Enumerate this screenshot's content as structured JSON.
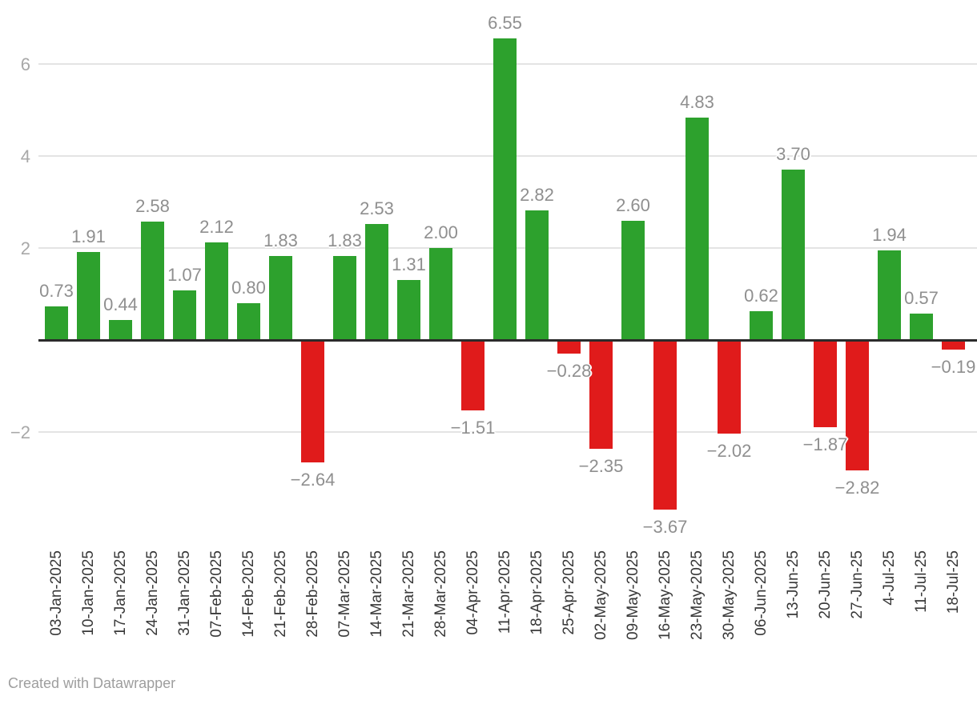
{
  "chart_data": {
    "type": "bar",
    "title": "",
    "xlabel": "",
    "ylabel": "",
    "grid": true,
    "legend": null,
    "categories": [
      "03-Jan-2025",
      "10-Jan-2025",
      "17-Jan-2025",
      "24-Jan-2025",
      "31-Jan-2025",
      "07-Feb-2025",
      "14-Feb-2025",
      "21-Feb-2025",
      "28-Feb-2025",
      "07-Mar-2025",
      "14-Mar-2025",
      "21-Mar-2025",
      "28-Mar-2025",
      "04-Apr-2025",
      "11-Apr-2025",
      "18-Apr-2025",
      "25-Apr-2025",
      "02-May-2025",
      "09-May-2025",
      "16-May-2025",
      "23-May-2025",
      "30-May-2025",
      "06-Jun-2025",
      "13-Jun-25",
      "20-Jun-25",
      "27-Jun-25",
      "4-Jul-25",
      "11-Jul-25",
      "18-Jul-25"
    ],
    "values": [
      0.73,
      1.91,
      0.44,
      2.58,
      1.07,
      2.12,
      0.8,
      1.83,
      -2.64,
      1.83,
      2.53,
      1.31,
      2.0,
      -1.51,
      6.55,
      2.82,
      -0.28,
      -2.35,
      2.6,
      -3.67,
      4.83,
      -2.02,
      0.62,
      3.7,
      -1.87,
      -2.82,
      1.94,
      0.57,
      -0.19
    ],
    "value_labels": [
      "0.73",
      "1.91",
      "0.44",
      "2.58",
      "1.07",
      "2.12",
      "0.80",
      "1.83",
      "−2.64",
      "1.83",
      "2.53",
      "1.31",
      "2.00",
      "−1.51",
      "6.55",
      "2.82",
      "−0.28",
      "−2.35",
      "2.60",
      "−3.67",
      "4.83",
      "−2.02",
      "0.62",
      "3.70",
      "−1.87",
      "−2.82",
      "1.94",
      "0.57",
      "−0.19"
    ],
    "yticks": [
      {
        "value": 6,
        "label": "6"
      },
      {
        "value": 4,
        "label": "4"
      },
      {
        "value": 2,
        "label": "2"
      },
      {
        "value": 0,
        "label": ""
      },
      {
        "value": -2,
        "label": "−2"
      }
    ],
    "ylim": [
      -4.6,
      7.2
    ],
    "positive_color": "#2da12d",
    "negative_color": "#e01b1b",
    "gridline_color": "#e4e4e4",
    "baseline_color": "#2b2b2b",
    "value_label_color": "#8f8f8f",
    "axis_tick_color": "#a8a8a8",
    "x_label_color": "#383838"
  },
  "footer": {
    "credit": "Created with Datawrapper"
  }
}
